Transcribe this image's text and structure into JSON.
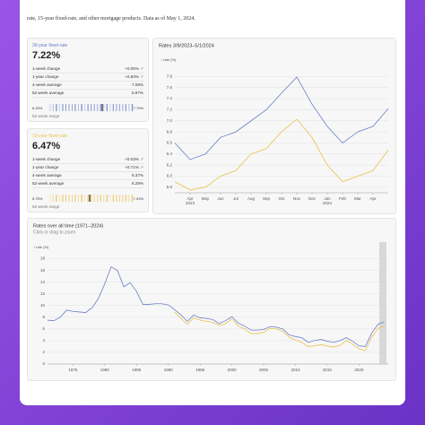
{
  "header": {
    "text": "rate, 15-year fixed-rate, and other mortgage products. Data as of May 1, 2024."
  },
  "cards": [
    {
      "title": "30-year fixed-rate",
      "rate": "7.22%",
      "rows": [
        {
          "label": "1-week change",
          "value": "+0.05%"
        },
        {
          "label": "1-year change",
          "value": "+0.83%"
        },
        {
          "label": "4-week average",
          "value": "7.09%"
        },
        {
          "label": "52-week average",
          "value": "6.97%"
        }
      ],
      "range_low": "6.20%",
      "range_high": "7.79%",
      "range_label": "52-week range"
    },
    {
      "title": "15-year fixed-rate",
      "rate": "6.47%",
      "rows": [
        {
          "label": "1-week change",
          "value": "+0.03%"
        },
        {
          "label": "1-year change",
          "value": "+0.71%"
        },
        {
          "label": "4-week average",
          "value": "6.37%"
        },
        {
          "label": "52-week average",
          "value": "6.29%"
        }
      ],
      "range_low": "5.75%",
      "range_high": "7.03%",
      "range_label": "52-week range"
    }
  ],
  "chart_data": [
    {
      "type": "line",
      "title": "Rates 3/9/2023–5/1/2024",
      "y_axis_label": "↑ rate (%)",
      "categories": [
        null,
        "Apr 2023",
        "May",
        "Jun",
        "Jul",
        "Aug",
        "Sep",
        "Oct",
        "Nov",
        "Dec",
        "Jan 2024",
        "Feb",
        "Mar",
        "Apr",
        null
      ],
      "series": [
        {
          "name": "30-year fixed-rate",
          "color": "#6a7fc4",
          "values": [
            6.6,
            6.3,
            6.4,
            6.7,
            6.8,
            7.0,
            7.2,
            7.5,
            7.79,
            7.3,
            6.9,
            6.6,
            6.8,
            6.9,
            7.22
          ]
        },
        {
          "name": "15-year fixed-rate",
          "color": "#e9c24a",
          "values": [
            5.9,
            5.75,
            5.8,
            6.0,
            6.1,
            6.4,
            6.5,
            6.8,
            7.03,
            6.7,
            6.2,
            5.9,
            6.0,
            6.1,
            6.47
          ]
        }
      ],
      "ylim": [
        5.7,
        8.0
      ],
      "yticks": [
        5.8,
        {
          "value": 6,
          "label": "6.0"
        },
        6.2,
        6.4,
        6.6,
        6.8,
        {
          "value": 7,
          "label": "7.0"
        },
        7.2,
        7.4,
        7.6,
        7.8
      ]
    },
    {
      "type": "line",
      "title": "Rates over all time (1971–2024)",
      "subtitle": "Click or drag to zoom",
      "y_axis_label": "↑ rate (%)",
      "x": [
        1971,
        1972,
        1973,
        1974,
        1975,
        1976,
        1977,
        1978,
        1979,
        1980,
        1981,
        1982,
        1983,
        1984,
        1985,
        1986,
        1987,
        1988,
        1989,
        1990,
        1991,
        1992,
        1993,
        1994,
        1995,
        1996,
        1997,
        1998,
        1999,
        2000,
        2001,
        2002,
        2003,
        2004,
        2005,
        2006,
        2007,
        2008,
        2009,
        2010,
        2011,
        2012,
        2013,
        2014,
        2015,
        2016,
        2017,
        2018,
        2019,
        2020,
        2021,
        2022,
        2023,
        2024
      ],
      "series": [
        {
          "name": "30-year fixed-rate",
          "color": "#6a7fc4",
          "values": [
            7.5,
            7.4,
            8.0,
            9.2,
            9.0,
            8.9,
            8.8,
            9.6,
            11.2,
            13.7,
            16.6,
            16.0,
            13.2,
            13.9,
            12.4,
            10.2,
            10.2,
            10.3,
            10.3,
            10.1,
            9.3,
            8.4,
            7.3,
            8.4,
            7.9,
            7.8,
            7.6,
            6.9,
            7.4,
            8.1,
            7.0,
            6.5,
            5.8,
            5.8,
            5.9,
            6.4,
            6.3,
            6.0,
            5.0,
            4.7,
            4.5,
            3.7,
            4.0,
            4.2,
            3.9,
            3.7,
            4.0,
            4.5,
            3.9,
            3.1,
            3.0,
            5.3,
            6.8,
            7.2
          ]
        },
        {
          "name": "15-year fixed-rate",
          "color": "#e9c24a",
          "values": [
            null,
            null,
            null,
            null,
            null,
            null,
            null,
            null,
            null,
            null,
            null,
            null,
            null,
            null,
            null,
            null,
            null,
            null,
            null,
            null,
            8.9,
            7.8,
            6.8,
            7.9,
            7.5,
            7.3,
            7.1,
            6.6,
            6.9,
            7.7,
            6.5,
            6.0,
            5.2,
            5.2,
            5.4,
            6.1,
            6.0,
            5.6,
            4.6,
            4.1,
            3.7,
            3.0,
            3.1,
            3.3,
            3.1,
            2.9,
            3.2,
            4.0,
            3.4,
            2.6,
            2.3,
            4.6,
            6.1,
            6.5
          ]
        }
      ],
      "xlim": [
        1971,
        2024.6
      ],
      "xticks": [
        1975,
        1980,
        1985,
        1990,
        1995,
        2000,
        2005,
        2010,
        2015,
        2020
      ],
      "ylim": [
        0,
        19
      ],
      "yticks": [
        0,
        2,
        4,
        6,
        8,
        10,
        12,
        14,
        16,
        18
      ]
    }
  ]
}
